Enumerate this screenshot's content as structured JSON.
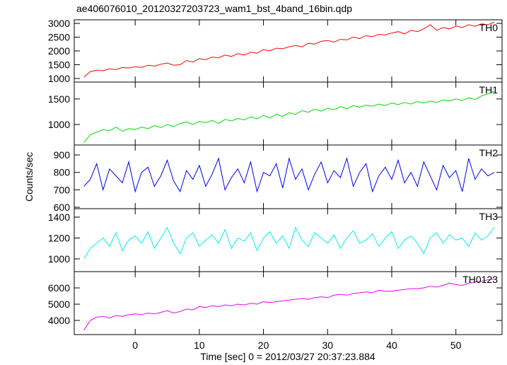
{
  "title": "ae406076010_20120327203723_wam1_bst_4band_16bin.qdp",
  "ylabel": "Counts/sec",
  "x_axis": {
    "label": "Time [sec] 0 = 2012/03/27 20:37:23.884",
    "xlim": [
      -9.5,
      57.2
    ],
    "xticks": [
      0,
      10,
      20,
      30,
      40,
      50
    ],
    "x": [
      -8,
      -7,
      -6,
      -5,
      -4,
      -3,
      -2,
      -1,
      0,
      1,
      2,
      3,
      4,
      5,
      6,
      7,
      8,
      9,
      10,
      11,
      12,
      13,
      14,
      15,
      16,
      17,
      18,
      19,
      20,
      21,
      22,
      23,
      24,
      25,
      26,
      27,
      28,
      29,
      30,
      31,
      32,
      33,
      34,
      35,
      36,
      37,
      38,
      39,
      40,
      41,
      42,
      43,
      44,
      45,
      46,
      47,
      48,
      49,
      50,
      51,
      52,
      53,
      54,
      55,
      56
    ]
  },
  "chart_data": [
    {
      "type": "line",
      "label": "TH0",
      "color": "#ff0000",
      "ylim": [
        870,
        3130
      ],
      "yticks": [
        1000,
        1500,
        2000,
        2500,
        3000
      ],
      "values": [
        1050,
        1250,
        1300,
        1280,
        1350,
        1320,
        1400,
        1380,
        1430,
        1400,
        1480,
        1450,
        1520,
        1560,
        1480,
        1500,
        1650,
        1600,
        1720,
        1680,
        1780,
        1750,
        1850,
        1800,
        1900,
        1850,
        1950,
        1920,
        2050,
        2000,
        2100,
        2080,
        2150,
        2200,
        2150,
        2280,
        2250,
        2350,
        2380,
        2320,
        2420,
        2400,
        2500,
        2450,
        2550,
        2520,
        2600,
        2580,
        2650,
        2700,
        2620,
        2750,
        2700,
        2800,
        2950,
        2750,
        2850,
        2800,
        2900,
        2850,
        2950,
        2900,
        2980,
        2950,
        3050
      ]
    },
    {
      "type": "line",
      "label": "TH1",
      "color": "#00dd00",
      "ylim": [
        600,
        1830
      ],
      "yticks": [
        1000,
        1500
      ],
      "values": [
        650,
        800,
        850,
        900,
        880,
        950,
        870,
        920,
        900,
        950,
        920,
        980,
        940,
        1000,
        960,
        1020,
        1050,
        1000,
        1060,
        1040,
        1080,
        1020,
        1100,
        1070,
        1120,
        1090,
        1150,
        1110,
        1180,
        1130,
        1200,
        1160,
        1230,
        1200,
        1270,
        1240,
        1300,
        1260,
        1320,
        1290,
        1350,
        1310,
        1370,
        1340,
        1380,
        1360,
        1400,
        1370,
        1420,
        1390,
        1430,
        1400,
        1450,
        1420,
        1460,
        1430,
        1480,
        1460,
        1500,
        1470,
        1520,
        1490,
        1560,
        1600,
        1650
      ]
    },
    {
      "type": "line",
      "label": "TH2",
      "color": "#0000ee",
      "ylim": [
        592,
        957
      ],
      "yticks": [
        600,
        700,
        800,
        900
      ],
      "values": [
        720,
        760,
        850,
        700,
        820,
        780,
        740,
        860,
        690,
        800,
        830,
        720,
        780,
        870,
        750,
        690,
        810,
        760,
        840,
        720,
        790,
        880,
        700,
        770,
        820,
        740,
        860,
        690,
        800,
        780,
        850,
        710,
        880,
        760,
        820,
        700,
        790,
        860,
        740,
        810,
        770,
        880,
        720,
        800,
        850,
        690,
        780,
        830,
        760,
        870,
        740,
        800,
        720,
        860,
        780,
        700,
        840,
        770,
        810,
        690,
        880,
        760,
        820,
        780,
        800
      ]
    },
    {
      "type": "line",
      "label": "TH3",
      "color": "#00eeee",
      "ylim": [
        878,
        1481
      ],
      "yticks": [
        1000,
        1200,
        1400
      ],
      "values": [
        1000,
        1100,
        1150,
        1200,
        1120,
        1250,
        1080,
        1180,
        1220,
        1150,
        1260,
        1100,
        1200,
        1300,
        1150,
        1050,
        1200,
        1250,
        1120,
        1180,
        1230,
        1150,
        1280,
        1100,
        1200,
        1170,
        1250,
        1080,
        1200,
        1260,
        1150,
        1220,
        1100,
        1300,
        1180,
        1120,
        1250,
        1200,
        1150,
        1230,
        1100,
        1200,
        1270,
        1150,
        1180,
        1240,
        1120,
        1200,
        1260,
        1100,
        1180,
        1220,
        1150,
        1050,
        1200,
        1250,
        1150,
        1230,
        1180,
        1200,
        1120,
        1250,
        1180,
        1220,
        1300
      ]
    },
    {
      "type": "line",
      "label": "TH0123",
      "color": "#ee00ee",
      "ylim": [
        3130,
        7000
      ],
      "yticks": [
        4000,
        5000,
        6000
      ],
      "values": [
        3400,
        4000,
        4200,
        4250,
        4150,
        4300,
        4250,
        4350,
        4400,
        4350,
        4450,
        4400,
        4500,
        4600,
        4450,
        4550,
        4700,
        4650,
        4850,
        4800,
        4900,
        4850,
        4950,
        4900,
        5000,
        4950,
        5050,
        5000,
        5150,
        5100,
        5150,
        5200,
        5250,
        5300,
        5350,
        5300,
        5400,
        5450,
        5400,
        5550,
        5600,
        5550,
        5650,
        5700,
        5750,
        5700,
        5850,
        5800,
        5800,
        5850,
        5900,
        5950,
        5950,
        6000,
        6100,
        6050,
        6150,
        6300,
        6200,
        6150,
        6300,
        6350,
        6400,
        6500,
        6550
      ]
    }
  ]
}
